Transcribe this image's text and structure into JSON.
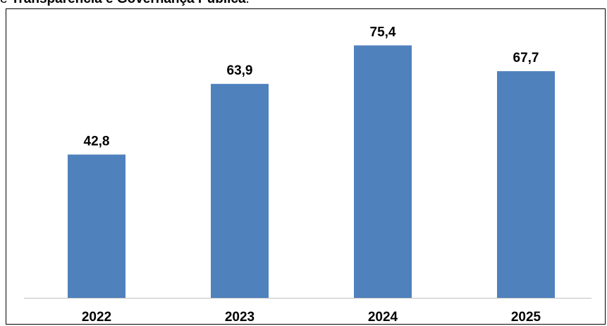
{
  "heading": {
    "prefix": "e ",
    "bold": "Transparência e Governança Pública",
    "suffix": "."
  },
  "chart_data": {
    "type": "bar",
    "categories": [
      "2022",
      "2023",
      "2024",
      "2025"
    ],
    "values": [
      42.8,
      63.9,
      75.4,
      67.7
    ],
    "data_labels": [
      "42,8",
      "63,9",
      "75,4",
      "67,7"
    ],
    "title": "",
    "xlabel": "",
    "ylabel": "",
    "ylim": [
      0,
      80
    ],
    "grid": false,
    "legend": "none",
    "bar_color": "#4f81bd",
    "axis_color": "#bfbfbf"
  }
}
